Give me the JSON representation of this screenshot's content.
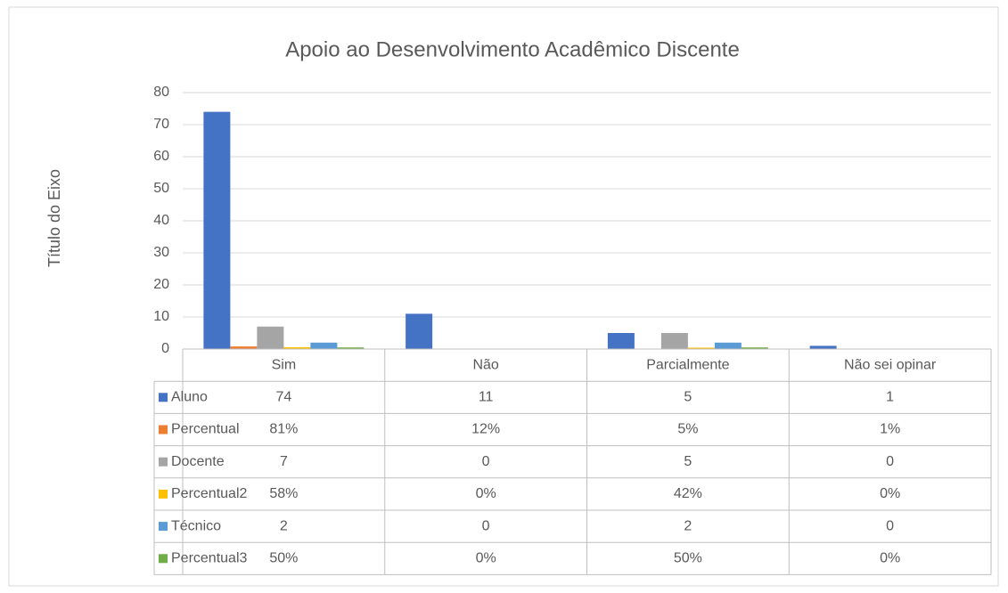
{
  "chart_data": {
    "type": "bar",
    "title": "Apoio ao Desenvolvimento Acadêmico Discente",
    "y_axis_label": "Título do Eixo",
    "categories": [
      "Sim",
      "Não",
      "Parcialmente",
      "Não sei opinar"
    ],
    "series": [
      {
        "name": "Aluno",
        "color": "#4472c4",
        "values": [
          74,
          11,
          5,
          1
        ]
      },
      {
        "name": "Percentual",
        "color": "#ed7d31",
        "values": [
          0.81,
          0.12,
          0.05,
          0.01
        ],
        "value_labels": [
          "81%",
          "12%",
          "5%",
          "1%"
        ]
      },
      {
        "name": "Docente",
        "color": "#a5a5a5",
        "values": [
          7,
          0,
          5,
          0
        ]
      },
      {
        "name": "Percentual2",
        "color": "#ffc000",
        "values": [
          0.58,
          0,
          0.42,
          0
        ],
        "value_labels": [
          "58%",
          "0%",
          "42%",
          "0%"
        ]
      },
      {
        "name": "Técnico",
        "color": "#5b9bd5",
        "values": [
          2,
          0,
          2,
          0
        ]
      },
      {
        "name": "Percentual3",
        "color": "#70ad47",
        "values": [
          0.5,
          0,
          0.5,
          0
        ],
        "value_labels": [
          "50%",
          "0%",
          "50%",
          "0%"
        ]
      }
    ],
    "ylim": [
      0,
      80
    ],
    "yticks": [
      0,
      10,
      20,
      30,
      40,
      50,
      60,
      70,
      80
    ],
    "grid": true,
    "data_table": true
  }
}
